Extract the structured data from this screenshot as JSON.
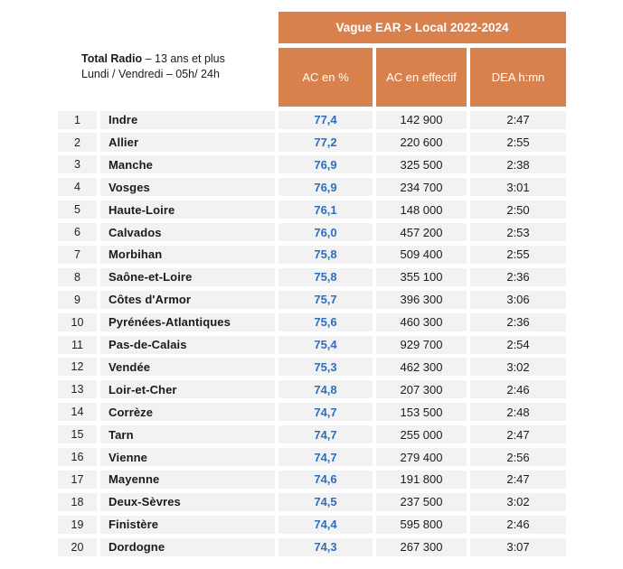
{
  "colors": {
    "orange": "#d9814c",
    "blue": "#2d6ebe",
    "row_bg": "#f2f2f2",
    "text": "#1b1b1b"
  },
  "info": {
    "line1_bold": "Total Radio",
    "line1_rest": " – 13 ans et plus",
    "line2": "Lundi / Vendredi – 05h/ 24h"
  },
  "header": {
    "banner": "Vague EAR > Local 2022-2024",
    "columns": [
      "AC en %",
      "AC en effectif",
      "DEA h:mn"
    ]
  },
  "chart_data": {
    "type": "table",
    "title": "Vague EAR > Local 2022-2024",
    "subtitle": "Total Radio – 13 ans et plus, Lundi / Vendredi – 05h/ 24h",
    "visible_column_headers": [
      "AC en %",
      "AC en effectif",
      "DEA h:mn"
    ],
    "rows": [
      {
        "rank": "1",
        "dept": "Indre",
        "ac_pct": "77,4",
        "ac_eff": "142 900",
        "dea": "2:47"
      },
      {
        "rank": "2",
        "dept": "Allier",
        "ac_pct": "77,2",
        "ac_eff": "220 600",
        "dea": "2:55"
      },
      {
        "rank": "3",
        "dept": "Manche",
        "ac_pct": "76,9",
        "ac_eff": "325 500",
        "dea": "2:38"
      },
      {
        "rank": "4",
        "dept": "Vosges",
        "ac_pct": "76,9",
        "ac_eff": "234 700",
        "dea": "3:01"
      },
      {
        "rank": "5",
        "dept": "Haute-Loire",
        "ac_pct": "76,1",
        "ac_eff": "148 000",
        "dea": "2:50"
      },
      {
        "rank": "6",
        "dept": "Calvados",
        "ac_pct": "76,0",
        "ac_eff": "457 200",
        "dea": "2:53"
      },
      {
        "rank": "7",
        "dept": "Morbihan",
        "ac_pct": "75,8",
        "ac_eff": "509 400",
        "dea": "2:55"
      },
      {
        "rank": "8",
        "dept": "Saône-et-Loire",
        "ac_pct": "75,8",
        "ac_eff": "355 100",
        "dea": "2:36"
      },
      {
        "rank": "9",
        "dept": "Côtes d'Armor",
        "ac_pct": "75,7",
        "ac_eff": "396 300",
        "dea": "3:06"
      },
      {
        "rank": "10",
        "dept": "Pyrénées-Atlantiques",
        "ac_pct": "75,6",
        "ac_eff": "460 300",
        "dea": "2:36"
      },
      {
        "rank": "11",
        "dept": "Pas-de-Calais",
        "ac_pct": "75,4",
        "ac_eff": "929 700",
        "dea": "2:54"
      },
      {
        "rank": "12",
        "dept": "Vendée",
        "ac_pct": "75,3",
        "ac_eff": "462 300",
        "dea": "3:02"
      },
      {
        "rank": "13",
        "dept": "Loir-et-Cher",
        "ac_pct": "74,8",
        "ac_eff": "207 300",
        "dea": "2:46"
      },
      {
        "rank": "14",
        "dept": "Corrèze",
        "ac_pct": "74,7",
        "ac_eff": "153 500",
        "dea": "2:48"
      },
      {
        "rank": "15",
        "dept": "Tarn",
        "ac_pct": "74,7",
        "ac_eff": "255 000",
        "dea": "2:47"
      },
      {
        "rank": "16",
        "dept": "Vienne",
        "ac_pct": "74,7",
        "ac_eff": "279 400",
        "dea": "2:56"
      },
      {
        "rank": "17",
        "dept": "Mayenne",
        "ac_pct": "74,6",
        "ac_eff": "191 800",
        "dea": "2:47"
      },
      {
        "rank": "18",
        "dept": "Deux-Sèvres",
        "ac_pct": "74,5",
        "ac_eff": "237 500",
        "dea": "3:02"
      },
      {
        "rank": "19",
        "dept": "Finistère",
        "ac_pct": "74,4",
        "ac_eff": "595 800",
        "dea": "2:46"
      },
      {
        "rank": "20",
        "dept": "Dordogne",
        "ac_pct": "74,3",
        "ac_eff": "267 300",
        "dea": "3:07"
      }
    ]
  }
}
